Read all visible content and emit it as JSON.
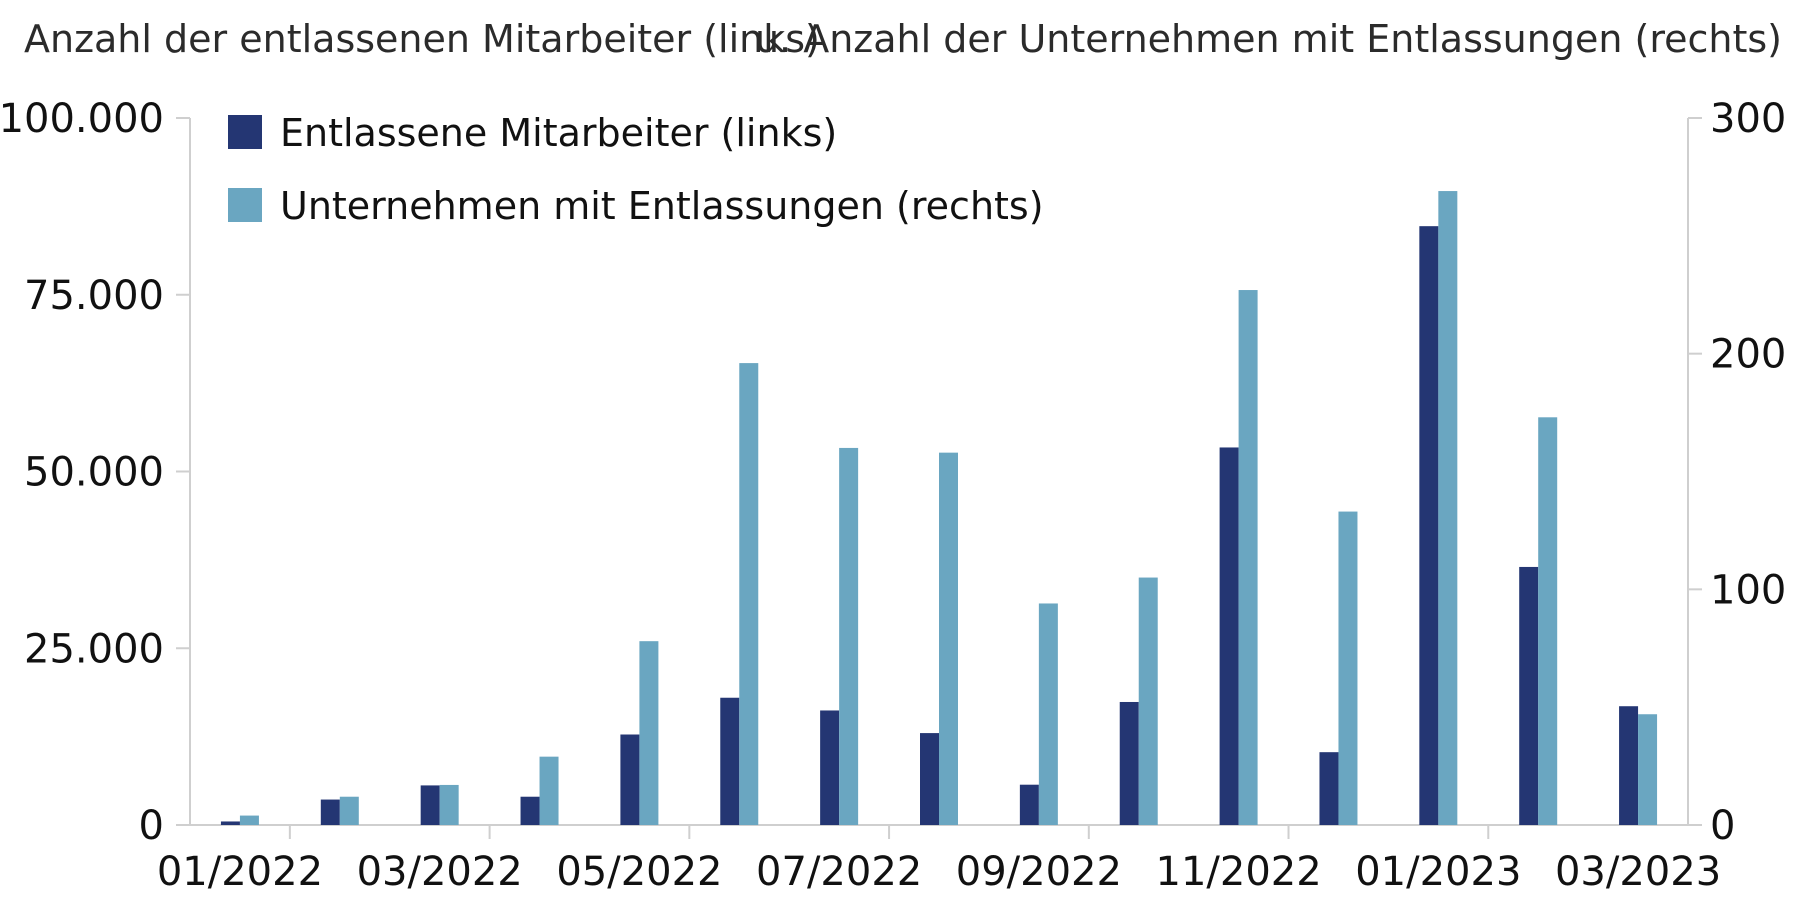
{
  "chart_data": {
    "type": "bar",
    "left_axis_title": "Anzahl der entlassenen Mitarbeiter (links)",
    "right_axis_title": "u. Anzahl der Unternehmen mit Entlassungen (rechts)",
    "categories": [
      "01/2022",
      "02/2022",
      "03/2022",
      "04/2022",
      "05/2022",
      "06/2022",
      "07/2022",
      "08/2022",
      "09/2022",
      "10/2022",
      "11/2022",
      "12/2022",
      "01/2023",
      "02/2023",
      "03/2023"
    ],
    "x_tick_labels": [
      "01/2022",
      "03/2022",
      "05/2022",
      "07/2022",
      "09/2022",
      "11/2022",
      "01/2023",
      "03/2023"
    ],
    "y_left": {
      "min": 0,
      "max": 100000,
      "ticks": [
        0,
        25000,
        50000,
        75000,
        100000
      ],
      "tick_labels": [
        "0",
        "25.000",
        "50.000",
        "75.000",
        "100.000"
      ]
    },
    "y_right": {
      "min": 0,
      "max": 300,
      "ticks": [
        0,
        100,
        200,
        300
      ],
      "tick_labels": [
        "0",
        "100",
        "200",
        "300"
      ]
    },
    "series": [
      {
        "name": "Entlassene Mitarbeiter (links)",
        "axis": "left",
        "color": "#243673",
        "values": [
          500,
          3600,
          5600,
          4000,
          12800,
          18000,
          16200,
          13000,
          5700,
          17400,
          53400,
          10300,
          84700,
          36500,
          16800
        ]
      },
      {
        "name": "Unternehmen mit Entlassungen (rechts)",
        "axis": "right",
        "color": "#6aa6c1",
        "values": [
          4,
          12,
          17,
          29,
          78,
          196,
          160,
          158,
          94,
          105,
          227,
          133,
          269,
          173,
          47
        ]
      }
    ],
    "legend_position": "top-left",
    "grid": false
  }
}
